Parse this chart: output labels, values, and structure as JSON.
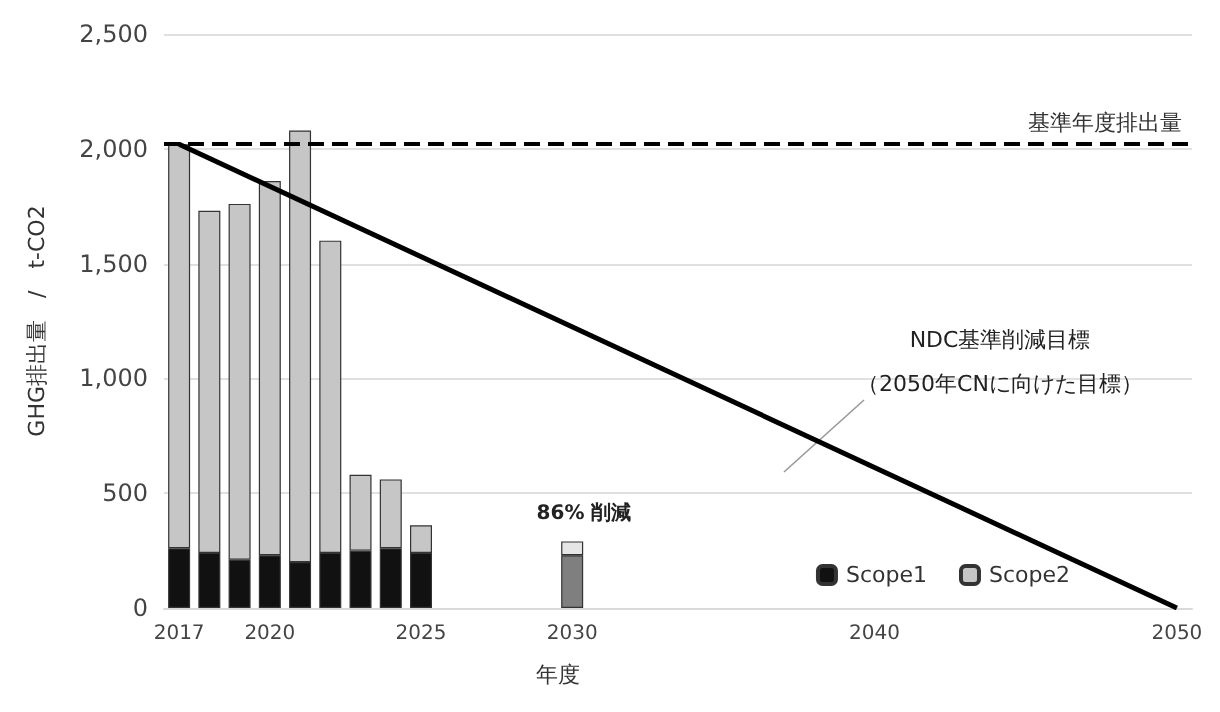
{
  "chart_data": {
    "type": "bar",
    "stacked": true,
    "ylabel": "GHG排出量　/　t-CO2",
    "xlabel": "年度",
    "categories": [
      "2017",
      null,
      null,
      "2020",
      null,
      null,
      null,
      null,
      "2025",
      null,
      null,
      null,
      null,
      "2030",
      null,
      null,
      null,
      null,
      null,
      null,
      null,
      null,
      null,
      "2040",
      null,
      null,
      null,
      null,
      null,
      null,
      null,
      null,
      null,
      "2050"
    ],
    "series": [
      {
        "name": "Scope1",
        "color": "#111111",
        "colors": [
          "#111111",
          "#111111",
          "#111111",
          "#111111",
          "#111111",
          "#111111",
          "#111111",
          "#111111",
          "#111111",
          null,
          null,
          null,
          null,
          "#7f7f7f",
          null,
          null,
          null,
          null,
          null,
          null,
          null,
          null,
          null,
          null,
          null,
          null,
          null,
          null,
          null,
          null,
          null,
          null,
          null,
          null
        ],
        "values": [
          260,
          240,
          210,
          230,
          200,
          240,
          250,
          260,
          240,
          null,
          null,
          null,
          null,
          230,
          null,
          null,
          null,
          null,
          null,
          null,
          null,
          null,
          null,
          null,
          null,
          null,
          null,
          null,
          null,
          null,
          null,
          null,
          null,
          null
        ]
      },
      {
        "name": "Scope2",
        "color": "#c6c6c6",
        "colors": [
          "#c6c6c6",
          "#c6c6c6",
          "#c6c6c6",
          "#c6c6c6",
          "#c6c6c6",
          "#c6c6c6",
          "#c6c6c6",
          "#c6c6c6",
          "#c6c6c6",
          null,
          null,
          null,
          null,
          "#e6e6e6",
          null,
          null,
          null,
          null,
          null,
          null,
          null,
          null,
          null,
          null,
          null,
          null,
          null,
          null,
          null,
          null,
          null,
          null,
          null,
          null
        ],
        "values": [
          1760,
          1490,
          1550,
          1630,
          1880,
          1360,
          330,
          300,
          120,
          null,
          null,
          null,
          null,
          60,
          null,
          null,
          null,
          null,
          null,
          null,
          null,
          null,
          null,
          null,
          null,
          null,
          null,
          null,
          null,
          null,
          null,
          null,
          null,
          null
        ]
      },
      {
        "type": "line",
        "color": "#000000",
        "values": [
          2020,
          null,
          null,
          null,
          null,
          null,
          null,
          null,
          null,
          null,
          null,
          null,
          null,
          null,
          null,
          null,
          null,
          null,
          null,
          null,
          null,
          null,
          null,
          null,
          null,
          null,
          null,
          null,
          null,
          null,
          null,
          null,
          null,
          0
        ],
        "marker": "none",
        "line_style": "solid"
      }
    ],
    "ylim": [
      0,
      2500
    ],
    "yticks": [
      {
        "value": 0,
        "label": "0"
      },
      {
        "value": 500,
        "label": "500"
      },
      {
        "value": 1000,
        "label": "1,000"
      },
      {
        "value": 1500,
        "label": "1,500"
      },
      {
        "value": 2000,
        "label": "2,000"
      },
      {
        "value": 2500,
        "label": "2,500"
      }
    ],
    "ref_lines": [
      {
        "axis": "y",
        "value": 2020,
        "label": "基準年度排出量",
        "color": "#000000",
        "line_style": "dashed"
      }
    ],
    "annotations": [
      "86% 削減",
      "NDC基準削減目標",
      "（2050年CNに向けた目標）"
    ],
    "grid": "y",
    "legend": "bottom right"
  }
}
